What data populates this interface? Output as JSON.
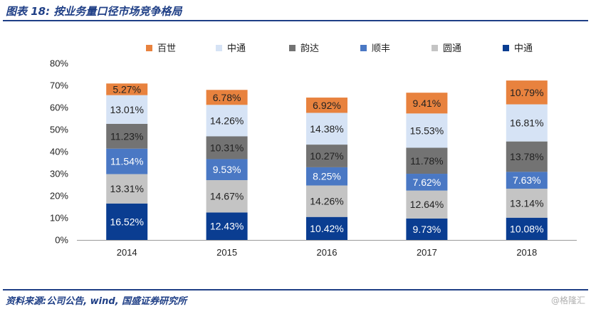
{
  "header": {
    "title": "图表 18:  按业务量口径市场竞争格局"
  },
  "footer": {
    "source": "资料来源:公司公告, wind, 国盛证券研究所",
    "watermark": "@格隆汇"
  },
  "colors": {
    "中通": "#0a3d91",
    "圆通": "#c4c4c4",
    "顺丰": "#4a78c4",
    "韵达": "#737373",
    "中通_light": "#d6e3f5",
    "百世": "#e8823e"
  },
  "chart_data": {
    "type": "bar",
    "stacked": true,
    "title": "",
    "xlabel": "",
    "ylabel": "",
    "ylim": [
      0,
      80
    ],
    "ytick_labels": [
      "0%",
      "10%",
      "20%",
      "30%",
      "40%",
      "50%",
      "60%",
      "70%",
      "80%"
    ],
    "categories": [
      "2014",
      "2015",
      "2016",
      "2017",
      "2018"
    ],
    "legend_position": "top",
    "legend_order": [
      "百世",
      "中通",
      "韵达",
      "顺丰",
      "圆通",
      "中通"
    ],
    "series": [
      {
        "name": "中通",
        "color_key": "中通",
        "label_color": "#ffffff",
        "values": [
          16.52,
          12.43,
          10.42,
          9.73,
          10.08
        ],
        "labels": [
          "16.52%",
          "12.43%",
          "10.42%",
          "9.73%",
          "10.08%"
        ]
      },
      {
        "name": "圆通",
        "color_key": "圆通",
        "label_color": "#222222",
        "values": [
          13.31,
          14.67,
          14.26,
          12.64,
          13.14
        ],
        "labels": [
          "13.31%",
          "14.67%",
          "14.26%",
          "12.64%",
          "13.14%"
        ]
      },
      {
        "name": "顺丰",
        "color_key": "顺丰",
        "label_color": "#ffffff",
        "values": [
          11.54,
          9.53,
          8.25,
          7.62,
          7.63
        ],
        "labels": [
          "11.54%",
          "9.53%",
          "8.25%",
          "7.62%",
          "7.63%"
        ]
      },
      {
        "name": "韵达",
        "color_key": "韵达",
        "label_color": "#222222",
        "values": [
          11.23,
          10.31,
          10.27,
          11.78,
          13.78
        ],
        "labels": [
          "11.23%",
          "10.31%",
          "10.27%",
          "11.78%",
          "13.78%"
        ]
      },
      {
        "name": "中通",
        "color_key": "中通_light",
        "label_color": "#222222",
        "values": [
          13.01,
          14.26,
          14.38,
          15.53,
          16.81
        ],
        "labels": [
          "13.01%",
          "14.26%",
          "14.38%",
          "15.53%",
          "16.81%"
        ]
      },
      {
        "name": "百世",
        "color_key": "百世",
        "label_color": "#222222",
        "values": [
          5.27,
          6.78,
          6.92,
          9.41,
          10.79
        ],
        "labels": [
          "5.27%",
          "6.78%",
          "6.92%",
          "9.41%",
          "10.79%"
        ]
      }
    ]
  }
}
